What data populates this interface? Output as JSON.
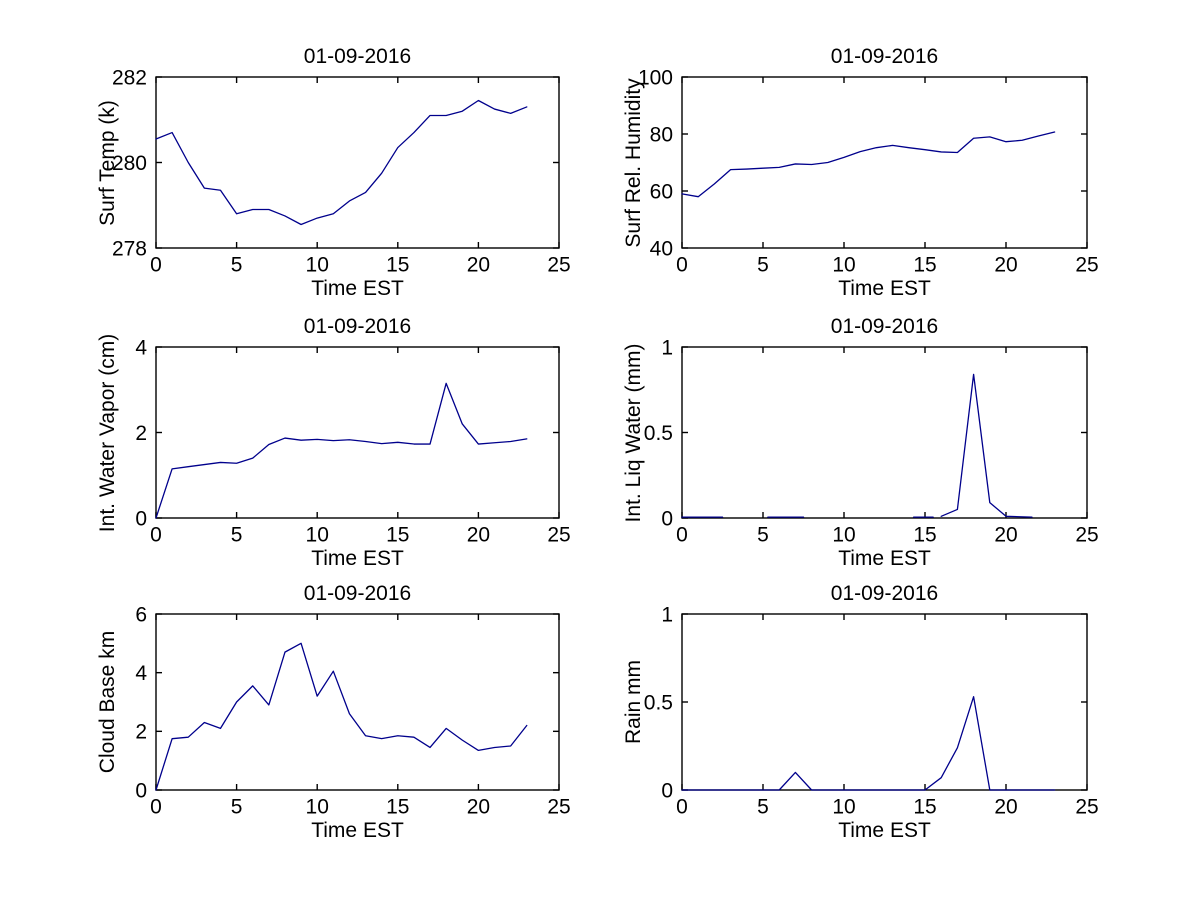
{
  "page": {
    "background": "#ffffff",
    "description": "Grid of six weather time-series plots for 01-09-2016"
  },
  "style": {
    "line_color": "#00008C",
    "axis_color": "#000000",
    "text_color": "#000000"
  },
  "chart_data": [
    {
      "type": "line",
      "title": "01-09-2016",
      "xlabel": "Time EST",
      "ylabel": "Surf Temp (k)",
      "xlim": [
        0,
        25
      ],
      "ylim": [
        278,
        282
      ],
      "xticks": [
        0,
        5,
        10,
        15,
        20,
        25
      ],
      "yticks": [
        278,
        280,
        282
      ],
      "grid": false,
      "legend": null,
      "series": [
        {
          "name": "surf-temp",
          "x": [
            0,
            1,
            2,
            3,
            4,
            5,
            6,
            7,
            8,
            9,
            10,
            11,
            12,
            13,
            14,
            15,
            16,
            17,
            18,
            19,
            20,
            21,
            22,
            23
          ],
          "y": [
            280.55,
            280.7,
            280.0,
            279.4,
            279.35,
            278.8,
            278.9,
            278.9,
            278.75,
            278.55,
            278.7,
            278.8,
            279.1,
            279.3,
            279.75,
            280.35,
            280.7,
            281.1,
            281.1,
            281.2,
            281.45,
            281.25,
            281.15,
            281.3
          ]
        }
      ]
    },
    {
      "type": "line",
      "title": "01-09-2016",
      "xlabel": "Time EST",
      "ylabel": "Surf Rel. Humidity",
      "xlim": [
        0,
        25
      ],
      "ylim": [
        40,
        100
      ],
      "xticks": [
        0,
        5,
        10,
        15,
        20,
        25
      ],
      "yticks": [
        40,
        60,
        80,
        100
      ],
      "grid": false,
      "legend": null,
      "series": [
        {
          "name": "rel-humidity",
          "x": [
            0,
            1,
            2,
            3,
            4,
            5,
            6,
            7,
            8,
            9,
            10,
            11,
            12,
            13,
            14,
            15,
            16,
            17,
            18,
            19,
            20,
            21,
            22,
            23
          ],
          "y": [
            59,
            58,
            62.5,
            67.5,
            67.7,
            68,
            68.3,
            69.5,
            69.3,
            70,
            71.8,
            73.8,
            75.2,
            76,
            75.2,
            74.5,
            73.7,
            73.5,
            78.5,
            79,
            77.3,
            77.8,
            79.3,
            80.7
          ]
        }
      ]
    },
    {
      "type": "line",
      "title": "01-09-2016",
      "xlabel": "Time EST",
      "ylabel": "Int. Water Vapor (cm)",
      "xlim": [
        0,
        25
      ],
      "ylim": [
        0,
        4
      ],
      "xticks": [
        0,
        5,
        10,
        15,
        20,
        25
      ],
      "yticks": [
        0,
        2,
        4
      ],
      "grid": false,
      "legend": null,
      "series": [
        {
          "name": "water-vapor",
          "x": [
            0,
            1,
            2,
            3,
            4,
            5,
            6,
            7,
            8,
            9,
            10,
            11,
            12,
            13,
            14,
            15,
            16,
            17,
            18,
            19,
            20,
            21,
            22,
            23
          ],
          "y": [
            0,
            1.15,
            1.2,
            1.25,
            1.3,
            1.28,
            1.4,
            1.72,
            1.87,
            1.82,
            1.84,
            1.81,
            1.83,
            1.79,
            1.74,
            1.77,
            1.73,
            1.73,
            3.15,
            2.2,
            1.73,
            1.76,
            1.79,
            1.85
          ]
        }
      ]
    },
    {
      "type": "line",
      "title": "01-09-2016",
      "xlabel": "Time EST",
      "ylabel": "Int. Liq Water (mm)",
      "xlim": [
        0,
        25
      ],
      "ylim": [
        0,
        1
      ],
      "xticks": [
        0,
        5,
        10,
        15,
        20,
        25
      ],
      "yticks": [
        0,
        0.5,
        1
      ],
      "grid": false,
      "legend": null,
      "series": [
        {
          "name": "liq-water-seg1",
          "x": [
            0,
            1,
            2.5
          ],
          "y": [
            0.005,
            0.005,
            0.005
          ]
        },
        {
          "name": "liq-water-seg2",
          "x": [
            5.3,
            6.5,
            7.5
          ],
          "y": [
            0.005,
            0.005,
            0.005
          ]
        },
        {
          "name": "liq-water-seg3",
          "x": [
            14.3,
            15,
            15.5
          ],
          "y": [
            0.005,
            0.005,
            0.005
          ]
        },
        {
          "name": "liq-water-spike",
          "x": [
            16,
            17,
            18,
            19,
            20,
            21.6
          ],
          "y": [
            0.01,
            0.05,
            0.84,
            0.09,
            0.01,
            0.005
          ]
        }
      ]
    },
    {
      "type": "line",
      "title": "01-09-2016",
      "xlabel": "Time EST",
      "ylabel": "Cloud Base km",
      "xlim": [
        0,
        25
      ],
      "ylim": [
        0,
        6
      ],
      "xticks": [
        0,
        5,
        10,
        15,
        20,
        25
      ],
      "yticks": [
        0,
        2,
        4,
        6
      ],
      "grid": false,
      "legend": null,
      "series": [
        {
          "name": "cloud-base",
          "x": [
            0,
            1,
            2,
            3,
            4,
            5,
            6,
            7,
            8,
            9,
            10,
            11,
            12,
            13,
            14,
            15,
            16,
            17,
            18,
            19,
            20,
            21,
            22,
            23
          ],
          "y": [
            0,
            1.75,
            1.8,
            2.3,
            2.1,
            3.0,
            3.55,
            2.9,
            4.7,
            5.0,
            3.2,
            4.05,
            2.6,
            1.85,
            1.75,
            1.85,
            1.8,
            1.45,
            2.1,
            1.7,
            1.35,
            1.45,
            1.5,
            2.2
          ]
        }
      ]
    },
    {
      "type": "line",
      "title": "01-09-2016",
      "xlabel": "Time EST",
      "ylabel": "Rain mm",
      "xlim": [
        0,
        25
      ],
      "ylim": [
        0,
        1
      ],
      "xticks": [
        0,
        5,
        10,
        15,
        20,
        25
      ],
      "yticks": [
        0,
        0.5,
        1
      ],
      "grid": false,
      "legend": null,
      "series": [
        {
          "name": "rain",
          "x": [
            0,
            1,
            2,
            3,
            4,
            5,
            6,
            7,
            8,
            9,
            10,
            11,
            12,
            13,
            14,
            15,
            16,
            17,
            18,
            19,
            20,
            21,
            22,
            23
          ],
          "y": [
            0,
            0,
            0,
            0,
            0,
            0,
            0,
            0.1,
            0,
            0,
            0,
            0,
            0,
            0,
            0,
            0,
            0.07,
            0.24,
            0.53,
            0,
            0,
            0,
            0,
            0
          ]
        }
      ]
    }
  ]
}
